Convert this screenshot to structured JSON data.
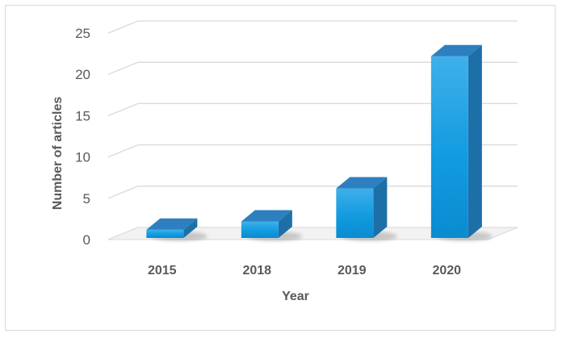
{
  "chart_data": {
    "type": "bar",
    "title": "",
    "xlabel": "Year",
    "ylabel": "Number of articles",
    "categories": [
      "2015",
      "2018",
      "2019",
      "2020"
    ],
    "values": [
      1,
      2,
      6,
      22
    ],
    "ylim": [
      0,
      25
    ],
    "yticks": [
      0,
      5,
      10,
      15,
      20,
      25
    ],
    "grid": true,
    "legend": "none",
    "style": "3d-column",
    "colors": {
      "bar_front": "#1f9fe0",
      "bar_top": "#2d7fbf",
      "bar_side": "#1d6fa8",
      "gridline": "#d9d9d9"
    }
  }
}
